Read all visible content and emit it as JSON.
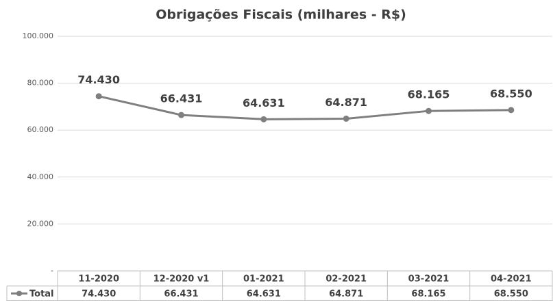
{
  "chart_data": {
    "type": "line",
    "title": "Obrigações Fiscais (milhares - R$)",
    "categories": [
      "11-2020",
      "12-2020 v1",
      "01-2021",
      "02-2021",
      "03-2021",
      "04-2021"
    ],
    "series": [
      {
        "name": "Total",
        "color": "#7f7f7f",
        "values": [
          74430,
          66431,
          64631,
          64871,
          68165,
          68550
        ],
        "value_labels": [
          "74.430",
          "66.431",
          "64.631",
          "64.871",
          "68.165",
          "68.550"
        ]
      }
    ],
    "ylim": [
      0,
      100000
    ],
    "yticks": [
      {
        "value": 0,
        "label": "-"
      },
      {
        "value": 20000,
        "label": "20.000"
      },
      {
        "value": 40000,
        "label": "40.000"
      },
      {
        "value": 60000,
        "label": "60.000"
      },
      {
        "value": 80000,
        "label": "80.000"
      },
      {
        "value": 100000,
        "label": "100.000"
      }
    ],
    "grid": true
  }
}
